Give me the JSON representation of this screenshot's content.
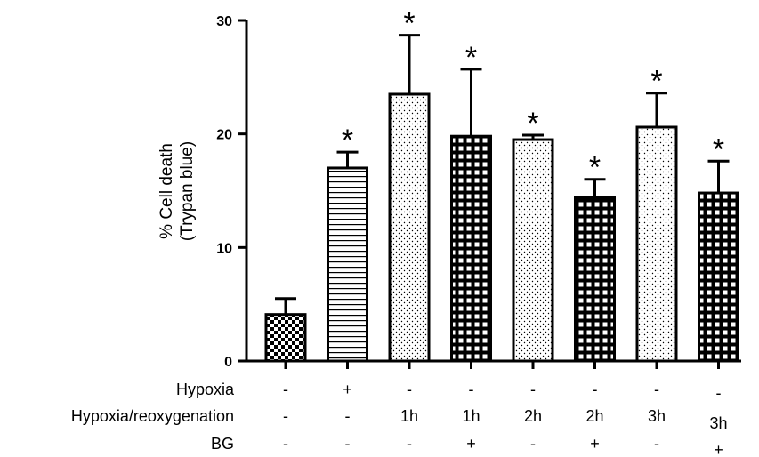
{
  "chart_data": {
    "type": "bar",
    "ylabel": [
      "% Cell death",
      "(Trypan blue)"
    ],
    "ylim": [
      0,
      30
    ],
    "yticks": [
      0,
      10,
      20,
      30
    ],
    "grid": false,
    "bars": [
      {
        "value": 4.1,
        "error": 1.4,
        "pattern": "checker",
        "star": ""
      },
      {
        "value": 17.0,
        "error": 1.4,
        "pattern": "hlines",
        "star": "*"
      },
      {
        "value": 23.5,
        "error": 5.2,
        "pattern": "dots",
        "star": "*"
      },
      {
        "value": 19.8,
        "error": 5.9,
        "pattern": "grid",
        "star": "*"
      },
      {
        "value": 19.5,
        "error": 0.4,
        "pattern": "dots",
        "star": "*"
      },
      {
        "value": 14.4,
        "error": 1.6,
        "pattern": "grid",
        "star": "*"
      },
      {
        "value": 20.6,
        "error": 3.0,
        "pattern": "dots",
        "star": "*"
      },
      {
        "value": 14.8,
        "error": 2.8,
        "pattern": "grid",
        "star": "*"
      }
    ],
    "condition_rows": [
      {
        "label": "Hypoxia",
        "values": [
          "-",
          "+",
          "-",
          "-",
          "-",
          "-",
          "-",
          "-"
        ]
      },
      {
        "label": "Hypoxia/reoxygenation",
        "values": [
          "-",
          "-",
          "1h",
          "1h",
          "2h",
          "2h",
          "3h",
          "3h"
        ]
      },
      {
        "label": "BG",
        "values": [
          "-",
          "-",
          "-",
          "+",
          "-",
          "+",
          "-",
          "+"
        ]
      }
    ]
  }
}
